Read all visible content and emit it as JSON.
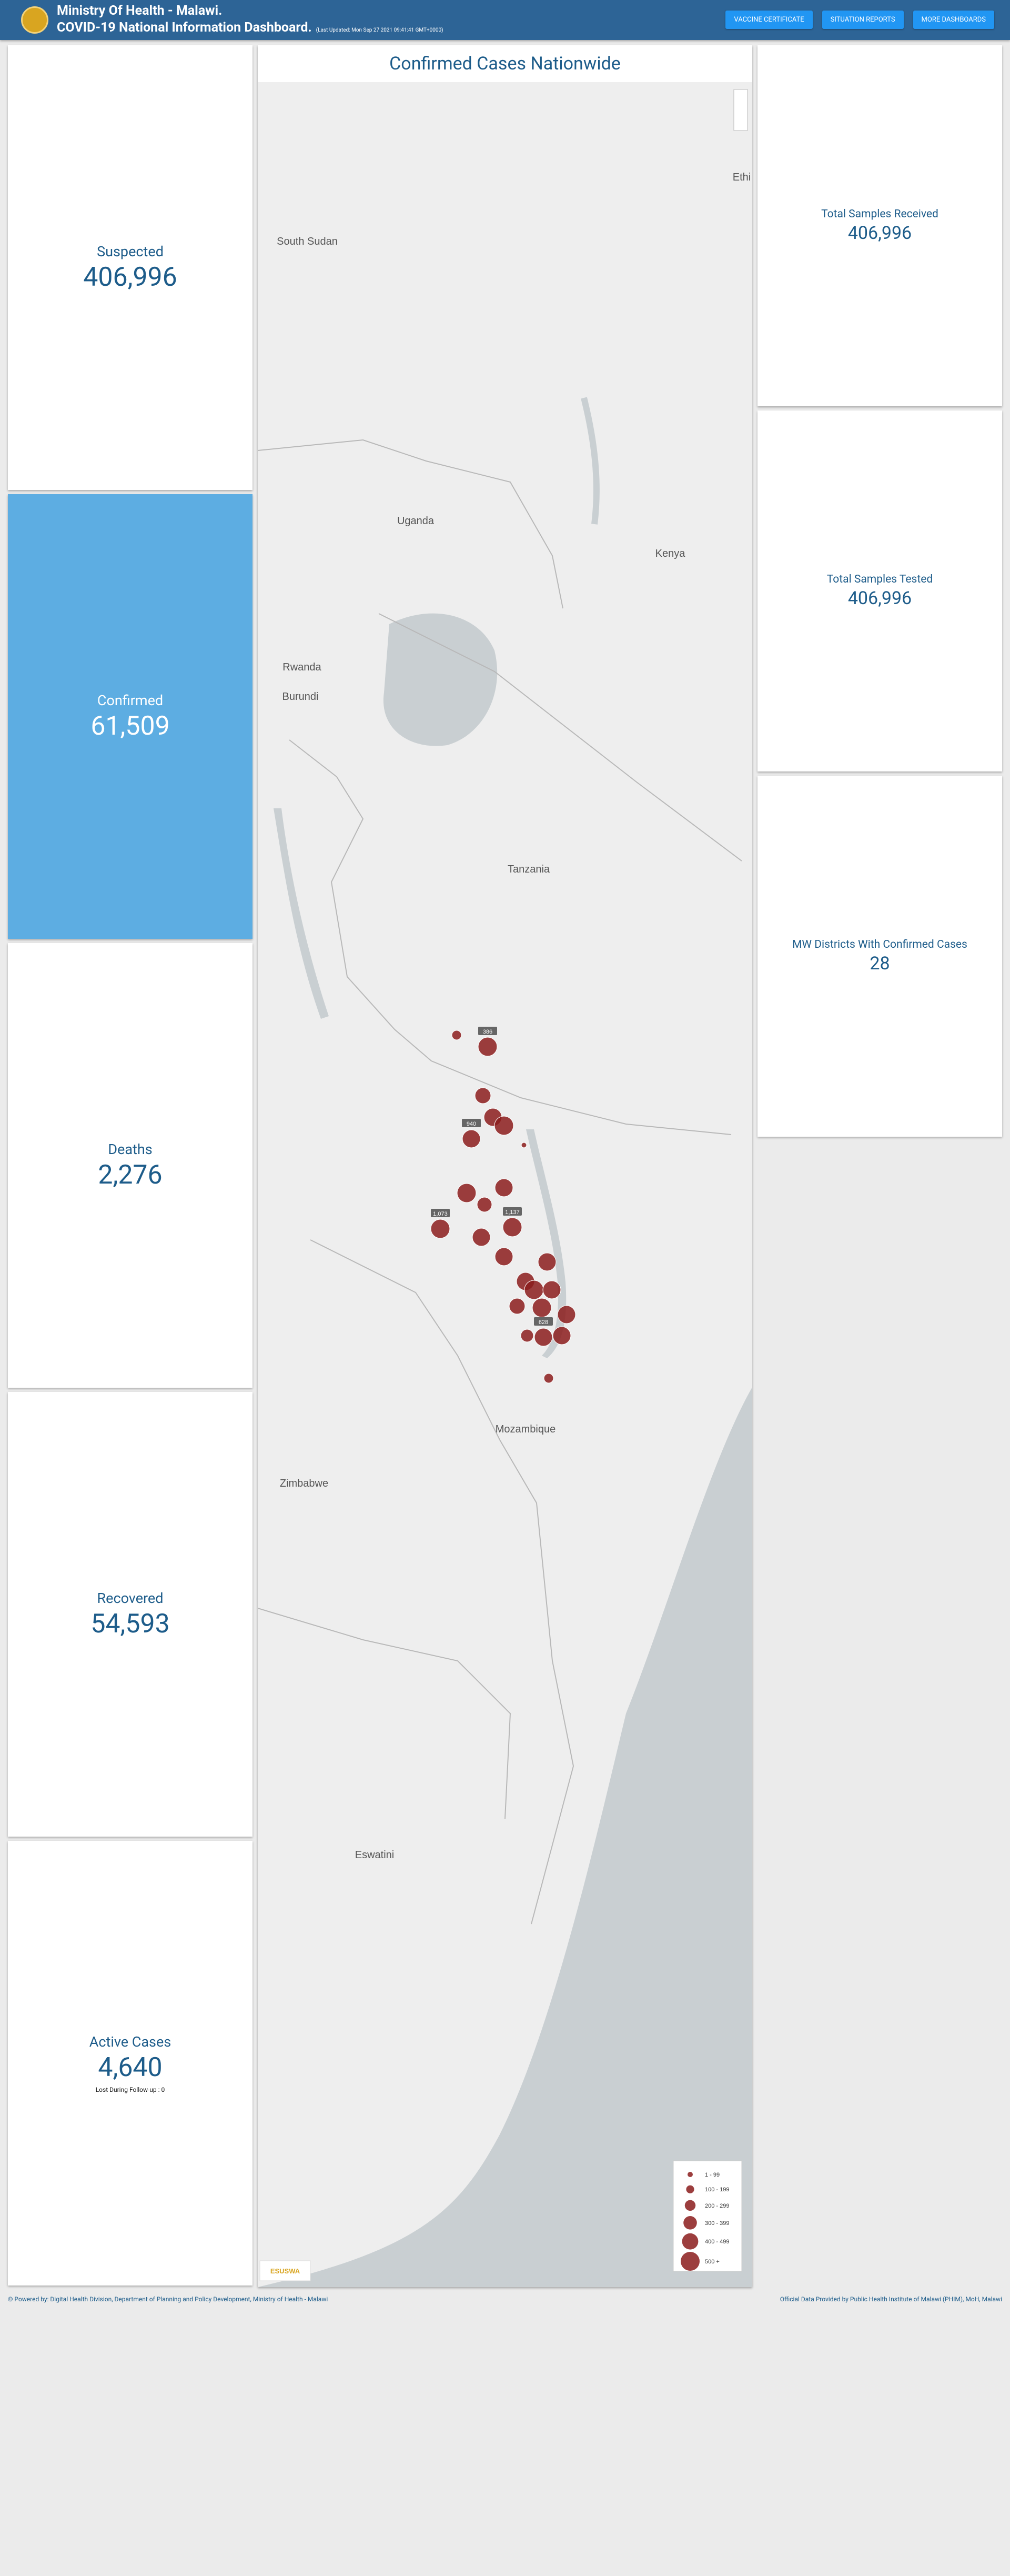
{
  "header": {
    "title": "Ministry Of Health - Malawi.",
    "subtitle": "COVID-19 National Information Dashboard.",
    "updated": "(Last Updated: Mon Sep 27 2021 09:41:41 GMT+0000)"
  },
  "buttons": [
    "VACCINE CERTIFICATE",
    "SITUATION REPORTS",
    "MORE DASHBOARDS"
  ],
  "left_cards": [
    {
      "label": "Suspected",
      "value": "406,996"
    },
    {
      "label": "Confirmed",
      "value": "61,509"
    },
    {
      "label": "Deaths",
      "value": "2,276"
    },
    {
      "label": "Recovered",
      "value": "54,593"
    },
    {
      "label": "Active Cases",
      "value": "4,640",
      "note": "Lost During Follow-up : 0"
    }
  ],
  "right_cards": [
    {
      "label": "Total Samples Received",
      "value": "406,996"
    },
    {
      "label": "Total Samples Tested",
      "value": "406,996"
    },
    {
      "label": "MW Districts With Confirmed Cases",
      "value": "28"
    }
  ],
  "map": {
    "title": "Confirmed Cases Nationwide",
    "places": [
      "South Sudan",
      "Uganda",
      "Kenya",
      "Rwanda",
      "Burundi",
      "Tanzania",
      "Mozambique",
      "Zimbabwe",
      "Eswatini",
      "Ethi"
    ],
    "bubble_labels": [
      "386",
      "940",
      "1,073",
      "1,137",
      "628"
    ],
    "legend": [
      "1 - 99",
      "100 - 199",
      "200 - 299",
      "300 - 399",
      "400 - 499",
      "500 +"
    ],
    "attribution": "ESUSWA"
  },
  "footer": {
    "left": "© Powered by: Digital Health Division, Department of Planning and Policy Development, Ministry of Health - Malawi",
    "right": "Official Data Provided by Public Health Institute of Malawi (PHIM), MoH, Malawi"
  }
}
